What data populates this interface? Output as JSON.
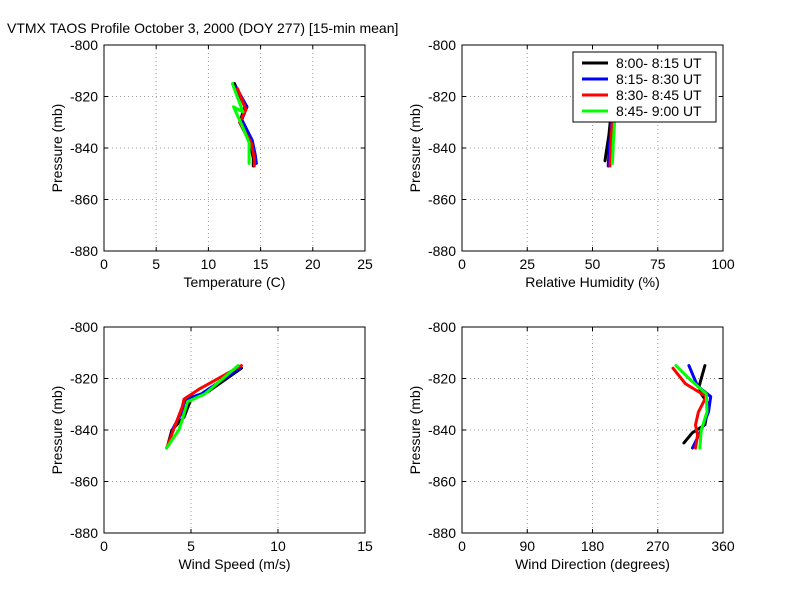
{
  "title": "VTMX TAOS Profile   October 3, 2000 (DOY 277) [15-min mean]",
  "legend": {
    "placement": "top-right of relative humidity panel",
    "entries": [
      {
        "label": "8:00- 8:15 UT",
        "color": "#000000"
      },
      {
        "label": "8:15- 8:30 UT",
        "color": "#0000ff"
      },
      {
        "label": "8:30- 8:45 UT",
        "color": "#ff0000"
      },
      {
        "label": "8:45- 9:00 UT",
        "color": "#00ff00"
      }
    ]
  },
  "chart_data": [
    {
      "type": "line",
      "xlabel": "Temperature (C)",
      "ylabel": "Pressure (mb)",
      "xlim": [
        0,
        25
      ],
      "ylim": [
        -880,
        -800
      ],
      "xticks": [
        "0",
        "5",
        "10",
        "15",
        "20",
        "25"
      ],
      "yticks": [
        "-800",
        "-820",
        "-840",
        "-860",
        "-880"
      ],
      "grid": true,
      "series": [
        {
          "name": "8:00- 8:15 UT",
          "color": "#000000",
          "x": [
            12.5,
            13.5,
            13.0,
            14.0,
            14.3,
            14.3
          ],
          "y": [
            -815,
            -824,
            -830,
            -838,
            -844,
            -847
          ]
        },
        {
          "name": "8:15- 8:30 UT",
          "color": "#0000ff",
          "x": [
            12.6,
            13.7,
            13.2,
            14.2,
            14.5,
            14.6
          ],
          "y": [
            -816,
            -824,
            -829,
            -837,
            -843,
            -846
          ]
        },
        {
          "name": "8:30- 8:45 UT",
          "color": "#ff0000",
          "x": [
            12.8,
            13.6,
            13.0,
            14.1,
            14.4,
            14.4
          ],
          "y": [
            -817,
            -825,
            -830,
            -838,
            -844,
            -847
          ]
        },
        {
          "name": "8:45- 9:00 UT",
          "color": "#00ff00",
          "x": [
            12.3,
            13.3,
            12.4,
            13.3,
            13.9,
            13.9
          ],
          "y": [
            -815,
            -826,
            -824,
            -832,
            -838,
            -846
          ]
        }
      ]
    },
    {
      "type": "line",
      "xlabel": "Relative Humidity (%)",
      "ylabel": "Pressure (mb)",
      "xlim": [
        0,
        100
      ],
      "ylim": [
        -880,
        -800
      ],
      "xticks": [
        "0",
        "25",
        "50",
        "75",
        "100"
      ],
      "yticks": [
        "-800",
        "-820",
        "-840",
        "-860",
        "-880"
      ],
      "grid": true,
      "series": [
        {
          "name": "8:00- 8:15 UT",
          "color": "#000000",
          "x": [
            56.5,
            56.8,
            56.3,
            55.5,
            54.8
          ],
          "y": [
            -826,
            -830,
            -835,
            -840,
            -845
          ]
        },
        {
          "name": "8:15- 8:30 UT",
          "color": "#0000ff",
          "x": [
            57.0,
            57.2,
            56.8,
            56.3,
            56.0
          ],
          "y": [
            -826,
            -830,
            -836,
            -842,
            -847
          ]
        },
        {
          "name": "8:30- 8:45 UT",
          "color": "#ff0000",
          "x": [
            57.3,
            57.5,
            57.1,
            56.9,
            56.7
          ],
          "y": [
            -826,
            -831,
            -837,
            -842,
            -847
          ]
        },
        {
          "name": "8:45- 9:00 UT",
          "color": "#00ff00",
          "x": [
            58.3,
            58.4,
            58.0,
            57.8,
            57.6
          ],
          "y": [
            -826,
            -831,
            -837,
            -842,
            -846
          ]
        }
      ]
    },
    {
      "type": "line",
      "xlabel": "Wind Speed (m/s)",
      "ylabel": "Pressure (mb)",
      "xlim": [
        0,
        15
      ],
      "ylim": [
        -880,
        -800
      ],
      "xticks": [
        "0",
        "5",
        "10",
        "15"
      ],
      "yticks": [
        "-800",
        "-820",
        "-840",
        "-860",
        "-880"
      ],
      "grid": true,
      "series": [
        {
          "name": "8:00- 8:15 UT",
          "color": "#000000",
          "x": [
            7.9,
            6.0,
            5.0,
            4.6,
            3.9,
            3.7
          ],
          "y": [
            -816,
            -825,
            -828,
            -835,
            -840,
            -845
          ]
        },
        {
          "name": "8:15- 8:30 UT",
          "color": "#0000ff",
          "x": [
            7.8,
            5.6,
            4.7,
            4.4,
            4.0,
            3.7
          ],
          "y": [
            -816,
            -826,
            -828,
            -834,
            -839,
            -846
          ]
        },
        {
          "name": "8:30- 8:45 UT",
          "color": "#ff0000",
          "x": [
            7.9,
            5.5,
            4.6,
            4.5,
            4.1,
            3.6
          ],
          "y": [
            -815,
            -824,
            -828,
            -831,
            -838,
            -847
          ]
        },
        {
          "name": "8:45- 9:00 UT",
          "color": "#00ff00",
          "x": [
            7.7,
            5.8,
            4.8,
            4.5,
            4.3,
            3.6
          ],
          "y": [
            -815,
            -826,
            -829,
            -836,
            -840,
            -847
          ]
        }
      ]
    },
    {
      "type": "line",
      "xlabel": "Wind Direction (degrees)",
      "ylabel": "Pressure (mb)",
      "xlim": [
        0,
        360
      ],
      "ylim": [
        -880,
        -800
      ],
      "xticks": [
        "0",
        "90",
        "180",
        "270",
        "360"
      ],
      "yticks": [
        "-800",
        "-820",
        "-840",
        "-860",
        "-880"
      ],
      "grid": true,
      "series": [
        {
          "name": "8:00- 8:15 UT",
          "color": "#000000",
          "x": [
            335,
            327,
            330,
            340,
            335,
            318,
            306
          ],
          "y": [
            -815,
            -823,
            -826,
            -830,
            -838,
            -841,
            -845
          ]
        },
        {
          "name": "8:15- 8:30 UT",
          "color": "#0000ff",
          "x": [
            313,
            325,
            343,
            340,
            330,
            318
          ],
          "y": [
            -815,
            -823,
            -827,
            -833,
            -840,
            -847
          ]
        },
        {
          "name": "8:30- 8:45 UT",
          "color": "#ff0000",
          "x": [
            291,
            308,
            337,
            326,
            322,
            325,
            322
          ],
          "y": [
            -816,
            -822,
            -827,
            -833,
            -838,
            -842,
            -847
          ]
        },
        {
          "name": "8:45- 9:00 UT",
          "color": "#00ff00",
          "x": [
            295,
            313,
            337,
            338,
            330,
            328
          ],
          "y": [
            -815,
            -820,
            -826,
            -833,
            -840,
            -847
          ]
        }
      ]
    }
  ]
}
